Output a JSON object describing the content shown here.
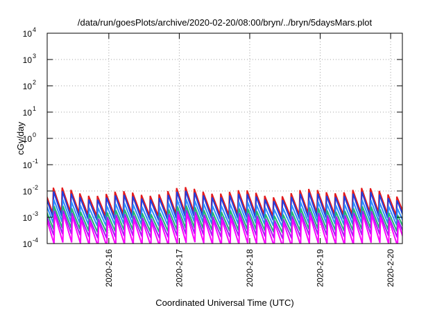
{
  "chart_data": {
    "type": "line",
    "title": "/data/run/goesPlots/archive/2020-02-20/08:00/bryn/../bryn/5daysMars.plot",
    "xlabel": "Coordinated Universal Time (UTC)",
    "ylabel": "cGy/day",
    "yscale": "log",
    "ylim": [
      0.0001,
      10000
    ],
    "y_ticks": [
      {
        "value": 0.0001,
        "base": "10",
        "exp": "-4"
      },
      {
        "value": 0.001,
        "base": "10",
        "exp": "-3"
      },
      {
        "value": 0.01,
        "base": "10",
        "exp": "-2"
      },
      {
        "value": 0.1,
        "base": "10",
        "exp": "-1"
      },
      {
        "value": 1,
        "base": "10",
        "exp": "0"
      },
      {
        "value": 10,
        "base": "10",
        "exp": "1"
      },
      {
        "value": 100,
        "base": "10",
        "exp": "2"
      },
      {
        "value": 1000,
        "base": "10",
        "exp": "3"
      },
      {
        "value": 10000,
        "base": "10",
        "exp": "4"
      }
    ],
    "xlim": [
      "2020-02-15 03:00",
      "2020-02-20 04:00"
    ],
    "x_ticks": [
      "2020-2-16",
      "2020-2-17",
      "2020-2-18",
      "2020-2-19",
      "2020-2-20"
    ],
    "grid": true,
    "legend": "none",
    "sawtooth_period_hours": 3,
    "series": [
      {
        "color": "#e41a1c",
        "peak": 0.009,
        "trough": 0.0013
      },
      {
        "color": "#1f3fe0",
        "peak": 0.0065,
        "trough": 0.0009
      },
      {
        "color": "#2b8cff",
        "peak": 0.0032,
        "trough": 0.00055
      },
      {
        "color": "#22b573",
        "peak": 0.0018,
        "trough": 0.00032
      },
      {
        "color": "#a020f0",
        "peak": 0.0012,
        "trough": 0.00019
      },
      {
        "color": "#ff00ff",
        "peak": 0.0009,
        "trough": 9e-05
      }
    ]
  }
}
